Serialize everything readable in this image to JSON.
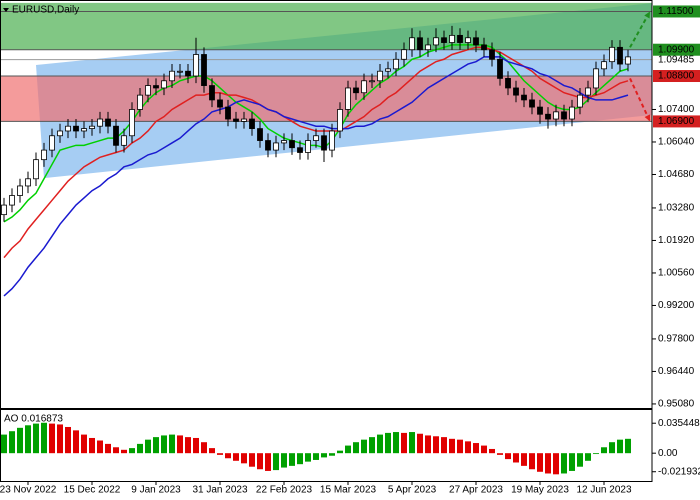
{
  "chart_data": {
    "type": "candlestick",
    "title": "EURUSD,Daily",
    "categories": [
      null,
      null,
      null,
      "23 Nov 2022",
      null,
      null,
      null,
      null,
      null,
      null,
      null,
      "15 Dec 2022",
      null,
      null,
      null,
      null,
      null,
      null,
      null,
      "9 Jan 2023",
      null,
      null,
      null,
      null,
      null,
      null,
      null,
      "31 Jan 2023",
      null,
      null,
      null,
      null,
      null,
      null,
      null,
      "22 Feb 2023",
      null,
      null,
      null,
      null,
      null,
      null,
      null,
      "15 Mar 2023",
      null,
      null,
      null,
      null,
      null,
      null,
      null,
      "5 Apr 2023",
      null,
      null,
      null,
      null,
      null,
      null,
      null,
      "27 Apr 2023",
      null,
      null,
      null,
      null,
      null,
      null,
      null,
      "19 May 2023",
      null,
      null,
      null,
      null,
      null,
      null,
      null,
      "12 Jun 2023",
      null,
      null,
      null
    ],
    "open": [
      1.03,
      1.034,
      1.038,
      1.042,
      1.045,
      1.053,
      1.057,
      1.063,
      1.065,
      1.067,
      1.065,
      1.066,
      1.067,
      1.07,
      1.067,
      1.059,
      1.063,
      1.074,
      1.08,
      1.084,
      1.083,
      1.086,
      1.09,
      1.09,
      1.088,
      1.097,
      1.084,
      1.078,
      1.075,
      1.07,
      1.069,
      1.07,
      1.066,
      1.061,
      1.057,
      1.06,
      1.061,
      1.058,
      1.056,
      1.061,
      1.063,
      1.057,
      1.065,
      1.074,
      1.083,
      1.081,
      1.086,
      1.086,
      1.09,
      1.091,
      1.095,
      1.099,
      1.104,
      1.099,
      1.101,
      1.104,
      1.102,
      1.105,
      1.102,
      1.104,
      1.101,
      1.099,
      1.095,
      1.087,
      1.083,
      1.08,
      1.078,
      1.075,
      1.072,
      1.07,
      1.073,
      1.07,
      1.075,
      1.08,
      1.083,
      1.091,
      1.094,
      1.1,
      1.093
    ],
    "high": [
      1.037,
      1.041,
      1.045,
      1.048,
      1.056,
      1.06,
      1.066,
      1.068,
      1.07,
      1.07,
      1.069,
      1.07,
      1.073,
      1.073,
      1.07,
      1.066,
      1.077,
      1.083,
      1.087,
      1.087,
      1.089,
      1.093,
      1.093,
      1.093,
      1.104,
      1.1,
      1.087,
      1.081,
      1.078,
      1.073,
      1.073,
      1.073,
      1.069,
      1.064,
      1.063,
      1.064,
      1.064,
      1.061,
      1.064,
      1.066,
      1.066,
      1.068,
      1.077,
      1.086,
      1.086,
      1.089,
      1.089,
      1.093,
      1.094,
      1.098,
      1.102,
      1.108,
      1.107,
      1.104,
      1.108,
      1.107,
      1.109,
      1.108,
      1.107,
      1.107,
      1.104,
      1.102,
      1.098,
      1.09,
      1.086,
      1.083,
      1.081,
      1.078,
      1.075,
      1.076,
      1.076,
      1.078,
      1.083,
      1.086,
      1.094,
      1.097,
      1.103,
      1.103,
      1.099
    ],
    "low": [
      1.027,
      1.031,
      1.035,
      1.039,
      1.042,
      1.05,
      1.054,
      1.06,
      1.062,
      1.062,
      1.062,
      1.063,
      1.064,
      1.064,
      1.056,
      1.056,
      1.06,
      1.071,
      1.077,
      1.08,
      1.08,
      1.083,
      1.087,
      1.085,
      1.085,
      1.081,
      1.075,
      1.072,
      1.067,
      1.066,
      1.066,
      1.063,
      1.058,
      1.054,
      1.054,
      1.057,
      1.055,
      1.053,
      1.053,
      1.058,
      1.052,
      1.054,
      1.062,
      1.071,
      1.078,
      1.078,
      1.083,
      1.083,
      1.087,
      1.088,
      1.092,
      1.096,
      1.096,
      1.096,
      1.098,
      1.099,
      1.099,
      1.099,
      1.099,
      1.098,
      1.096,
      1.092,
      1.084,
      1.08,
      1.077,
      1.075,
      1.072,
      1.068,
      1.066,
      1.067,
      1.067,
      1.067,
      1.072,
      1.077,
      1.08,
      1.088,
      1.091,
      1.09,
      1.09
    ],
    "close": [
      1.034,
      1.038,
      1.042,
      1.045,
      1.053,
      1.057,
      1.063,
      1.065,
      1.067,
      1.065,
      1.066,
      1.067,
      1.07,
      1.067,
      1.059,
      1.063,
      1.074,
      1.08,
      1.084,
      1.083,
      1.086,
      1.09,
      1.09,
      1.088,
      1.097,
      1.084,
      1.078,
      1.075,
      1.07,
      1.069,
      1.07,
      1.066,
      1.061,
      1.057,
      1.06,
      1.061,
      1.058,
      1.056,
      1.061,
      1.063,
      1.057,
      1.065,
      1.074,
      1.083,
      1.081,
      1.086,
      1.086,
      1.09,
      1.091,
      1.095,
      1.099,
      1.104,
      1.099,
      1.101,
      1.104,
      1.102,
      1.105,
      1.102,
      1.104,
      1.101,
      1.099,
      1.095,
      1.087,
      1.083,
      1.08,
      1.078,
      1.075,
      1.072,
      1.07,
      1.073,
      1.07,
      1.075,
      1.08,
      1.083,
      1.091,
      1.094,
      1.1,
      1.093,
      1.096
    ],
    "series": [
      {
        "color": "#00d000",
        "values": [
          1.027,
          1.029,
          1.032,
          1.036,
          1.039,
          1.045,
          1.051,
          1.057,
          1.058,
          1.059,
          1.059,
          1.06,
          1.061,
          1.062,
          1.062,
          1.065,
          1.069,
          1.074,
          1.078,
          1.081,
          1.083,
          1.084,
          1.086,
          1.087,
          1.088,
          1.088,
          1.086,
          1.083,
          1.08,
          1.077,
          1.075,
          1.073,
          1.07,
          1.066,
          1.064,
          1.062,
          1.061,
          1.06,
          1.059,
          1.059,
          1.058,
          1.061,
          1.066,
          1.072,
          1.076,
          1.079,
          1.082,
          1.085,
          1.087,
          1.09,
          1.092,
          1.095,
          1.096,
          1.098,
          1.099,
          1.1,
          1.101,
          1.101,
          1.101,
          1.101,
          1.101,
          1.1,
          1.097,
          1.094,
          1.09,
          1.086,
          1.083,
          1.08,
          1.077,
          1.075,
          1.074,
          1.074,
          1.075,
          1.078,
          1.081,
          1.084,
          1.087,
          1.09,
          1.091
        ]
      },
      {
        "color": "#e02020",
        "values": [
          1.012,
          1.016,
          1.019,
          1.024,
          1.028,
          1.032,
          1.036,
          1.04,
          1.044,
          1.047,
          1.05,
          1.052,
          1.054,
          1.055,
          1.056,
          1.057,
          1.06,
          1.062,
          1.065,
          1.069,
          1.071,
          1.074,
          1.076,
          1.078,
          1.08,
          1.08,
          1.081,
          1.081,
          1.08,
          1.08,
          1.079,
          1.078,
          1.076,
          1.074,
          1.073,
          1.071,
          1.069,
          1.067,
          1.066,
          1.065,
          1.065,
          1.065,
          1.065,
          1.067,
          1.069,
          1.071,
          1.074,
          1.076,
          1.079,
          1.081,
          1.084,
          1.087,
          1.09,
          1.092,
          1.094,
          1.095,
          1.097,
          1.098,
          1.099,
          1.1,
          1.1,
          1.099,
          1.098,
          1.096,
          1.094,
          1.092,
          1.09,
          1.087,
          1.085,
          1.083,
          1.081,
          1.08,
          1.079,
          1.079,
          1.08,
          1.081,
          1.083,
          1.085,
          1.086
        ]
      },
      {
        "color": "#1a1ad0",
        "values": [
          0.996,
          0.999,
          1.003,
          1.008,
          1.012,
          1.016,
          1.021,
          1.026,
          1.03,
          1.034,
          1.037,
          1.04,
          1.042,
          1.045,
          1.047,
          1.05,
          1.051,
          1.053,
          1.055,
          1.056,
          1.058,
          1.06,
          1.062,
          1.065,
          1.068,
          1.07,
          1.073,
          1.074,
          1.075,
          1.077,
          1.078,
          1.077,
          1.076,
          1.074,
          1.073,
          1.071,
          1.07,
          1.069,
          1.068,
          1.067,
          1.067,
          1.066,
          1.066,
          1.066,
          1.067,
          1.067,
          1.068,
          1.07,
          1.071,
          1.073,
          1.075,
          1.077,
          1.08,
          1.083,
          1.085,
          1.087,
          1.089,
          1.091,
          1.093,
          1.094,
          1.096,
          1.096,
          1.096,
          1.094,
          1.093,
          1.092,
          1.091,
          1.089,
          1.088,
          1.086,
          1.084,
          1.083,
          1.081,
          1.079,
          1.078,
          1.078,
          1.078,
          1.079,
          1.08
        ]
      }
    ],
    "ylim": [
      0.9491,
      1.1198
    ],
    "yticks": [
      {
        "value": 1.074,
        "label": "1.07400"
      },
      {
        "value": 1.0604,
        "label": "1.06040"
      },
      {
        "value": 1.0468,
        "label": "1.04680"
      },
      {
        "value": 1.0328,
        "label": "1.03280"
      },
      {
        "value": 1.0192,
        "label": "1.01920"
      },
      {
        "value": 1.0056,
        "label": "1.00560"
      },
      {
        "value": 0.992,
        "label": "0.99200"
      },
      {
        "value": 0.978,
        "label": "0.97800"
      },
      {
        "value": 0.9644,
        "label": "0.96440"
      },
      {
        "value": 0.9508,
        "label": "0.95080"
      }
    ],
    "grid": false,
    "levels": [
      {
        "value": 1.115,
        "label": "1.11500",
        "color": "#1f8f1f"
      },
      {
        "value": 1.099,
        "label": "1.09900",
        "color": "#1f8f1f"
      },
      {
        "value": 1.09485,
        "label": "1.09485"
      },
      {
        "value": 1.088,
        "label": "1.08800",
        "color": "#d42020"
      },
      {
        "value": 1.069,
        "label": "1.06900",
        "color": "#d42020"
      }
    ],
    "zones": [
      {
        "from": 1.099,
        "to": 1.1186,
        "color": "#4caf50"
      },
      {
        "from": 1.069,
        "to": 1.088,
        "color": "#f07070"
      }
    ],
    "channel": {
      "upper": [
        1.0926,
        1.1185
      ],
      "lower": [
        1.0453,
        1.0717
      ],
      "color": "#a6cdf3"
    },
    "arrows": [
      {
        "from": 1.1,
        "to": 1.115,
        "color": "#1f8f1f"
      },
      {
        "from": 1.087,
        "to": 1.069,
        "color": "#e02020"
      }
    ],
    "oscillator": {
      "label": "AO 0.016873",
      "values": [
        0.022,
        0.026,
        0.03,
        0.033,
        0.035,
        0.036,
        0.035,
        0.034,
        0.031,
        0.027,
        0.022,
        0.018,
        0.015,
        0.011,
        0.007,
        0.004,
        0.006,
        0.011,
        0.016,
        0.019,
        0.021,
        0.022,
        0.021,
        0.019,
        0.018,
        0.013,
        0.006,
        -0.002,
        -0.006,
        -0.009,
        -0.012,
        -0.016,
        -0.019,
        -0.021,
        -0.02,
        -0.017,
        -0.015,
        -0.013,
        -0.01,
        -0.008,
        -0.005,
        -0.003,
        0.003,
        0.009,
        0.013,
        0.016,
        0.019,
        0.022,
        0.024,
        0.025,
        0.024,
        0.025,
        0.023,
        0.021,
        0.02,
        0.019,
        0.017,
        0.016,
        0.014,
        0.012,
        0.009,
        0.005,
        -0.002,
        -0.007,
        -0.011,
        -0.015,
        -0.019,
        -0.022,
        -0.024,
        -0.025,
        -0.024,
        -0.021,
        -0.016,
        -0.009,
        -0.001,
        0.007,
        0.013,
        0.016,
        0.017
      ],
      "ylim": [
        -0.0329,
        0.0499
      ],
      "yticks": [
        0.035448,
        {
          "value": 0,
          "label": "0.00"
        },
        -0.021932
      ],
      "up_color": "#00a000",
      "down_color": "#e00000"
    }
  }
}
